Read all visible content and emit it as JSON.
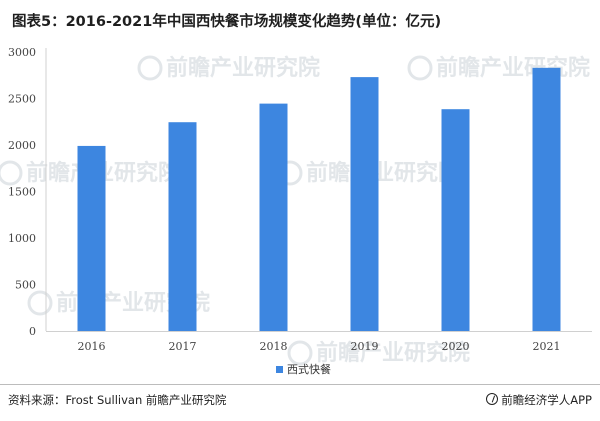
{
  "title": "图表5：2016-2021年中国西快餐市场规模变化趋势(单位：亿元)",
  "chart_data": {
    "type": "bar",
    "categories": [
      "2016",
      "2017",
      "2018",
      "2019",
      "2020",
      "2021"
    ],
    "series": [
      {
        "name": "西式快餐",
        "values": [
          1990,
          2245,
          2445,
          2730,
          2385,
          2830
        ]
      }
    ],
    "ylim": [
      0,
      3000
    ],
    "yticks": [
      0,
      500,
      1000,
      1500,
      2000,
      2500,
      3000
    ],
    "grid": false,
    "legend": "bottom-center",
    "bar_color": "#3d86e0"
  },
  "watermark": {
    "text": "前瞻产业研究院"
  },
  "footer": {
    "source": "资料来源：Frost Sullivan 前瞻产业研究院",
    "brand": "前瞻经济学人APP"
  }
}
